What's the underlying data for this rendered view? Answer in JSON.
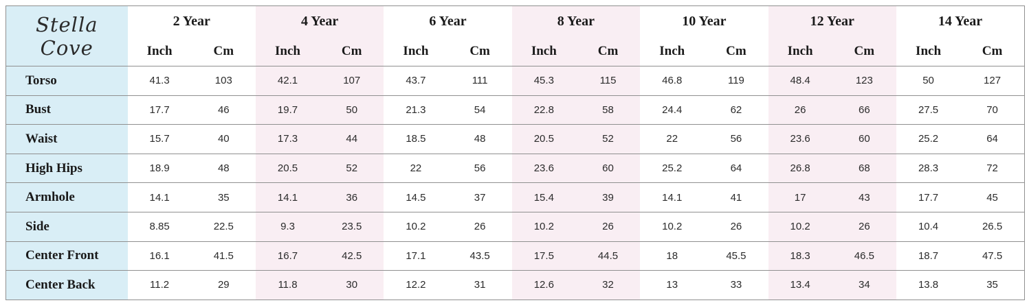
{
  "brand": {
    "name": "Stella Cove"
  },
  "chart_data": {
    "type": "table",
    "title": "Stella Cove",
    "size_groups": [
      {
        "label": "2 Year",
        "highlighted": false
      },
      {
        "label": "4 Year",
        "highlighted": true
      },
      {
        "label": "6 Year",
        "highlighted": false
      },
      {
        "label": "8 Year",
        "highlighted": true
      },
      {
        "label": "10 Year",
        "highlighted": false
      },
      {
        "label": "12 Year",
        "highlighted": true
      },
      {
        "label": "14 Year",
        "highlighted": false
      }
    ],
    "unit_headers": [
      "Inch",
      "Cm"
    ],
    "rows": [
      {
        "label": "Torso",
        "values": [
          41.3,
          103,
          42.1,
          107,
          43.7,
          111,
          45.3,
          115,
          46.8,
          119,
          48.4,
          123,
          50,
          127
        ]
      },
      {
        "label": "Bust",
        "values": [
          17.7,
          46,
          19.7,
          50,
          21.3,
          54,
          22.8,
          58,
          24.4,
          62,
          26,
          66,
          27.5,
          70
        ]
      },
      {
        "label": "Waist",
        "values": [
          15.7,
          40,
          17.3,
          44,
          18.5,
          48,
          20.5,
          52,
          22,
          56,
          23.6,
          60,
          25.2,
          64
        ]
      },
      {
        "label": "High Hips",
        "values": [
          18.9,
          48,
          20.5,
          52,
          22,
          56,
          23.6,
          60,
          25.2,
          64,
          26.8,
          68,
          28.3,
          72
        ]
      },
      {
        "label": "Armhole",
        "values": [
          14.1,
          35,
          14.1,
          36,
          14.5,
          37,
          15.4,
          39,
          14.1,
          41,
          17,
          43,
          17.7,
          45
        ]
      },
      {
        "label": "Side",
        "values": [
          8.85,
          22.5,
          9.3,
          23.5,
          10.2,
          26,
          10.2,
          26,
          10.2,
          26,
          10.2,
          26,
          10.4,
          26.5
        ]
      },
      {
        "label": "Center Front",
        "values": [
          16.1,
          41.5,
          16.7,
          42.5,
          17.1,
          43.5,
          17.5,
          44.5,
          18,
          45.5,
          18.3,
          46.5,
          18.7,
          47.5
        ]
      },
      {
        "label": "Center Back",
        "values": [
          11.2,
          29,
          11.8,
          30,
          12.2,
          31,
          12.6,
          32,
          13,
          33,
          13.4,
          34,
          13.8,
          35
        ]
      }
    ],
    "layout_hints": {
      "label_column_position": "left",
      "row_separators": true,
      "column_separators": false,
      "highlight_pattern": "alternating size-group tint"
    }
  },
  "colors": {
    "label_column_bg": "#d9eef6",
    "highlight_column_bg": "#f9eef3",
    "plain_column_bg": "#ffffff",
    "border": "#8f8f8f",
    "heading_text": "#1a1a1a",
    "value_text": "#2b2b2b"
  }
}
